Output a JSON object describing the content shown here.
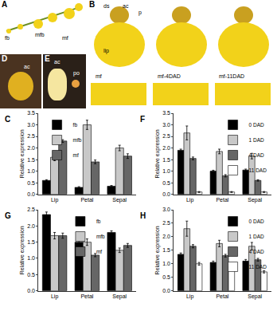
{
  "photos": [
    {
      "label": "A",
      "texts": [
        "fb",
        "mfb",
        "mf"
      ]
    },
    {
      "label": "B",
      "texts": [
        "ds",
        "ac",
        "p",
        "lip",
        "mf",
        "mf-4DAD",
        "mf-11DAD"
      ]
    },
    {
      "label": "D",
      "texts": [
        "ac"
      ]
    },
    {
      "label": "E",
      "texts": [
        "ac",
        "po"
      ]
    }
  ],
  "chart_data": [
    {
      "type": "bar",
      "label": "C",
      "y_label": "Relative expression",
      "categories": [
        "Lip",
        "Petal",
        "Sepal"
      ],
      "series": [
        {
          "name": "fb",
          "color": "#000000",
          "values": [
            0.6,
            0.3,
            0.35
          ],
          "errors": [
            0.03,
            0.03,
            0.03
          ]
        },
        {
          "name": "mfb",
          "color": "#c8c8c8",
          "values": [
            1.6,
            3.0,
            2.0
          ],
          "errors": [
            0.15,
            0.2,
            0.12
          ]
        },
        {
          "name": "mf",
          "color": "#666666",
          "values": [
            2.3,
            1.4,
            1.65
          ],
          "errors": [
            0.06,
            0.08,
            0.1
          ]
        }
      ],
      "ylim": [
        0,
        3.5
      ],
      "yticks": [
        {
          "value": 0,
          "label": "0.0"
        },
        {
          "value": 0.5,
          "label": "0.5"
        },
        {
          "value": 1,
          "label": "1.0"
        },
        {
          "value": 1.5,
          "label": "1.5"
        },
        {
          "value": 2,
          "label": "2.0"
        },
        {
          "value": 2.5,
          "label": "2.5"
        },
        {
          "value": 3,
          "label": "3.0"
        },
        {
          "value": 3.5,
          "label": "3.5"
        }
      ],
      "grid": false,
      "legend": "upper left"
    },
    {
      "type": "bar",
      "label": "F",
      "y_label": "Relative expression",
      "categories": [
        "Lip",
        "Petal",
        "Sepal"
      ],
      "series": [
        {
          "name": "0 DAD",
          "color": "#000000",
          "values": [
            1.9,
            1.0,
            1.05
          ],
          "errors": [
            0.05,
            0.04,
            0.04
          ]
        },
        {
          "name": "1 DAD",
          "color": "#c8c8c8",
          "values": [
            2.65,
            1.85,
            1.65
          ],
          "errors": [
            0.3,
            0.1,
            0.12
          ]
        },
        {
          "name": "4 DAD",
          "color": "#666666",
          "values": [
            1.55,
            0.8,
            0.6
          ],
          "errors": [
            0.06,
            0.05,
            0.03
          ]
        },
        {
          "name": "11 DAD",
          "color": "#ffffff",
          "values": [
            0.1,
            0.1,
            0.1
          ],
          "errors": [
            0.02,
            0.02,
            0.02
          ]
        }
      ],
      "ylim": [
        0,
        3.5
      ],
      "yticks": [
        {
          "value": 0,
          "label": "0.0"
        },
        {
          "value": 0.5,
          "label": "0.5"
        },
        {
          "value": 1,
          "label": "1.0"
        },
        {
          "value": 1.5,
          "label": "1.5"
        },
        {
          "value": 2,
          "label": "2.0"
        },
        {
          "value": 2.5,
          "label": "2.5"
        },
        {
          "value": 3,
          "label": "3.0"
        },
        {
          "value": 3.5,
          "label": "3.5"
        }
      ],
      "grid": false,
      "legend": "upper right"
    },
    {
      "type": "bar",
      "label": "G",
      "y_label": "Relative expression",
      "categories": [
        "Lip",
        "Petal",
        "Sepal"
      ],
      "series": [
        {
          "name": "fb",
          "color": "#000000",
          "values": [
            2.35,
            1.5,
            1.8
          ],
          "errors": [
            0.08,
            0.08,
            0.05
          ]
        },
        {
          "name": "mfb",
          "color": "#c8c8c8",
          "values": [
            1.7,
            1.5,
            1.25
          ],
          "errors": [
            0.1,
            0.1,
            0.07
          ]
        },
        {
          "name": "mf",
          "color": "#666666",
          "values": [
            1.7,
            1.1,
            1.4
          ],
          "errors": [
            0.08,
            0.05,
            0.06
          ]
        }
      ],
      "ylim": [
        0,
        2.5
      ],
      "yticks": [
        {
          "value": 0,
          "label": "0.0"
        },
        {
          "value": 0.5,
          "label": "0.5"
        },
        {
          "value": 1,
          "label": "1.0"
        },
        {
          "value": 1.5,
          "label": "1.5"
        },
        {
          "value": 2,
          "label": "2.0"
        },
        {
          "value": 2.5,
          "label": "2.5"
        }
      ],
      "grid": false,
      "legend": "upper center"
    },
    {
      "type": "bar",
      "label": "H",
      "y_label": "Relative expression",
      "categories": [
        "Lip",
        "Petal",
        "Sepal"
      ],
      "series": [
        {
          "name": "0 DAD",
          "color": "#000000",
          "values": [
            1.35,
            1.05,
            1.1
          ],
          "errors": [
            0.05,
            0.05,
            0.06
          ]
        },
        {
          "name": "1 DAD",
          "color": "#c8c8c8",
          "values": [
            2.3,
            1.75,
            1.65
          ],
          "errors": [
            0.28,
            0.12,
            0.14
          ]
        },
        {
          "name": "4 DAD",
          "color": "#666666",
          "values": [
            1.65,
            1.3,
            1.15
          ],
          "errors": [
            0.06,
            0.05,
            0.05
          ]
        },
        {
          "name": "11 DAD",
          "color": "#ffffff",
          "values": [
            1.0,
            0.9,
            0.7
          ],
          "errors": [
            0.05,
            0.05,
            0.04
          ]
        }
      ],
      "ylim": [
        0,
        3.0
      ],
      "yticks": [
        {
          "value": 0,
          "label": "0.0"
        },
        {
          "value": 0.5,
          "label": "0.5"
        },
        {
          "value": 1,
          "label": "1.0"
        },
        {
          "value": 1.5,
          "label": "1.5"
        },
        {
          "value": 2,
          "label": "2.0"
        },
        {
          "value": 2.5,
          "label": "2.5"
        },
        {
          "value": 3,
          "label": "3.0"
        }
      ],
      "grid": false,
      "legend": "upper right"
    }
  ]
}
